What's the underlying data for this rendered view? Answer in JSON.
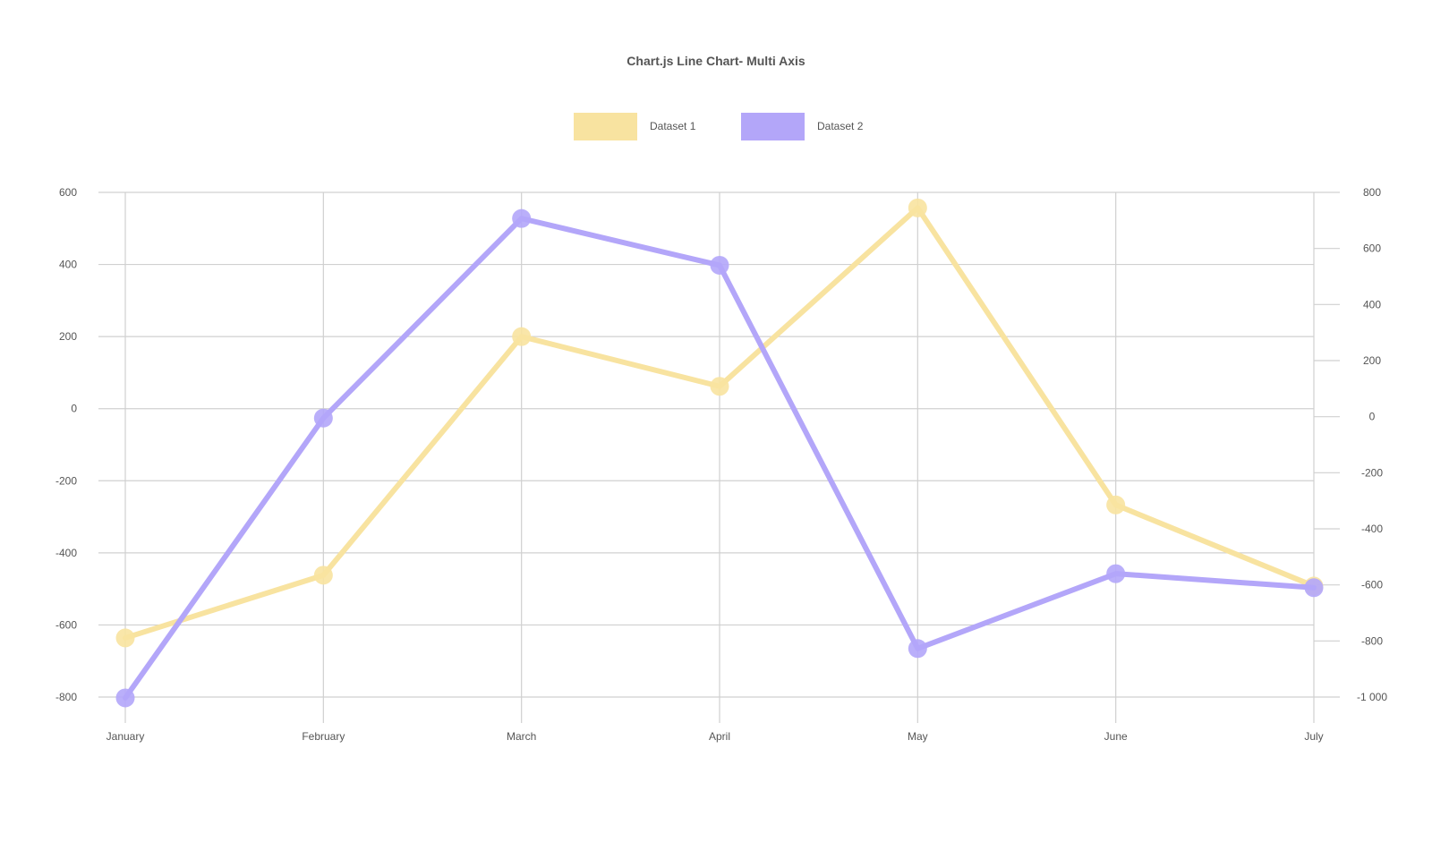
{
  "chart_data": {
    "type": "line",
    "title": "Chart.js Line Chart- Multi Axis",
    "categories": [
      "January",
      "February",
      "March",
      "April",
      "May",
      "June",
      "July"
    ],
    "series": [
      {
        "name": "Dataset 1",
        "axis": "left",
        "values": [
          -636,
          -462,
          200,
          62,
          557,
          -267,
          -492
        ],
        "color": "#f8e3a0"
      },
      {
        "name": "Dataset 2",
        "axis": "right",
        "values": [
          -1003,
          -5,
          707,
          540,
          -827,
          -560,
          -610
        ],
        "color": "#b3a6f9"
      }
    ],
    "y_left": {
      "min": -800,
      "max": 600,
      "ticks": [
        "600",
        "400",
        "200",
        "0",
        "-200",
        "-400",
        "-600",
        "-800"
      ]
    },
    "y_right": {
      "min": -1000,
      "max": 800,
      "ticks": [
        "800",
        "600",
        "400",
        "200",
        "0",
        "-200",
        "-400",
        "-600",
        "-800",
        "-1 000"
      ]
    },
    "grid": true,
    "legend_position": "top"
  }
}
